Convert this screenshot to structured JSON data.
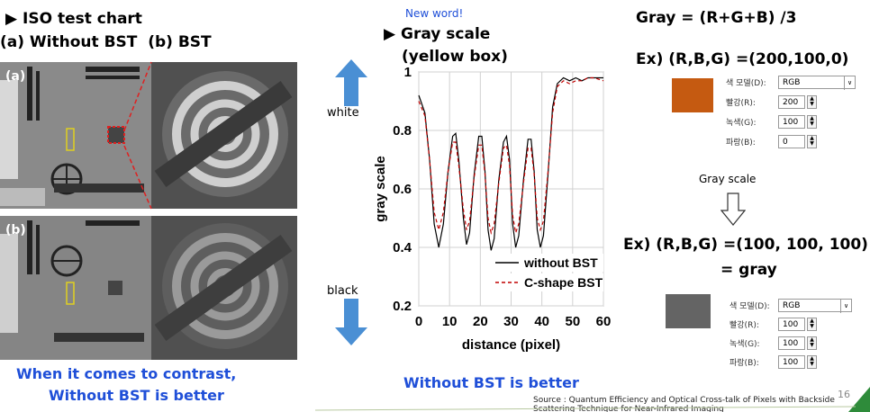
{
  "left": {
    "title": "ISO test chart",
    "subtitle": "(a) Without BST  (b) BST",
    "panel_a_tag": "(a)",
    "panel_b_tag": "(b)",
    "caption_line1": "When it comes to contrast,",
    "caption_line2": "Without BST is better"
  },
  "arrows": {
    "white_label": "white",
    "black_label": "black",
    "color": "#4a8fd4"
  },
  "graph": {
    "new_word": "New word!",
    "title_line1": "Gray scale",
    "title_line2": "(yellow box)",
    "caption": "Without BST is better"
  },
  "chart_data": {
    "type": "line",
    "xlabel": "distance (pixel)",
    "ylabel": "gray scale",
    "xlim": [
      0,
      60
    ],
    "ylim": [
      0.2,
      1.0
    ],
    "x_ticks": [
      "0",
      "10",
      "20",
      "30",
      "40",
      "50",
      "60"
    ],
    "y_ticks": [
      "0.2",
      "0.4",
      "0.6",
      "0.8",
      "1"
    ],
    "grid": true,
    "legend_position": "bottom-right",
    "series": [
      {
        "name": "without BST",
        "color": "#000000",
        "style": "solid",
        "points": [
          [
            0,
            0.92
          ],
          [
            2,
            0.86
          ],
          [
            3.5,
            0.7
          ],
          [
            5,
            0.48
          ],
          [
            6.5,
            0.4
          ],
          [
            8,
            0.48
          ],
          [
            9.5,
            0.66
          ],
          [
            11,
            0.78
          ],
          [
            12,
            0.79
          ],
          [
            13,
            0.7
          ],
          [
            14.5,
            0.5
          ],
          [
            15.5,
            0.41
          ],
          [
            16.5,
            0.45
          ],
          [
            18,
            0.65
          ],
          [
            19.5,
            0.78
          ],
          [
            20.5,
            0.78
          ],
          [
            21.5,
            0.66
          ],
          [
            22.5,
            0.46
          ],
          [
            23.5,
            0.39
          ],
          [
            24.5,
            0.43
          ],
          [
            26,
            0.63
          ],
          [
            27.5,
            0.76
          ],
          [
            28.5,
            0.78
          ],
          [
            29.5,
            0.7
          ],
          [
            30.5,
            0.48
          ],
          [
            31.5,
            0.4
          ],
          [
            32.5,
            0.44
          ],
          [
            34,
            0.63
          ],
          [
            35.5,
            0.77
          ],
          [
            36.5,
            0.77
          ],
          [
            37.5,
            0.66
          ],
          [
            38.5,
            0.46
          ],
          [
            39.5,
            0.4
          ],
          [
            40.5,
            0.44
          ],
          [
            42,
            0.65
          ],
          [
            43.5,
            0.88
          ],
          [
            45,
            0.96
          ],
          [
            47,
            0.98
          ],
          [
            49,
            0.97
          ],
          [
            51,
            0.98
          ],
          [
            53,
            0.97
          ],
          [
            55,
            0.98
          ],
          [
            57,
            0.98
          ],
          [
            60,
            0.98
          ]
        ]
      },
      {
        "name": "C-shape BST",
        "color": "#c00000",
        "style": "dashed",
        "points": [
          [
            0,
            0.9
          ],
          [
            2,
            0.85
          ],
          [
            3.5,
            0.7
          ],
          [
            5,
            0.52
          ],
          [
            6.5,
            0.46
          ],
          [
            8,
            0.52
          ],
          [
            9.5,
            0.66
          ],
          [
            11,
            0.76
          ],
          [
            12,
            0.76
          ],
          [
            13,
            0.68
          ],
          [
            14.5,
            0.53
          ],
          [
            15.5,
            0.46
          ],
          [
            16.5,
            0.49
          ],
          [
            18,
            0.64
          ],
          [
            19.5,
            0.75
          ],
          [
            20.5,
            0.75
          ],
          [
            21.5,
            0.65
          ],
          [
            22.5,
            0.5
          ],
          [
            23.5,
            0.45
          ],
          [
            24.5,
            0.48
          ],
          [
            26,
            0.62
          ],
          [
            27.5,
            0.74
          ],
          [
            28.5,
            0.75
          ],
          [
            29.5,
            0.68
          ],
          [
            30.5,
            0.51
          ],
          [
            31.5,
            0.45
          ],
          [
            32.5,
            0.48
          ],
          [
            34,
            0.62
          ],
          [
            35.5,
            0.74
          ],
          [
            36.5,
            0.74
          ],
          [
            37.5,
            0.65
          ],
          [
            38.5,
            0.5
          ],
          [
            39.5,
            0.46
          ],
          [
            40.5,
            0.49
          ],
          [
            42,
            0.66
          ],
          [
            43.5,
            0.86
          ],
          [
            45,
            0.95
          ],
          [
            47,
            0.97
          ],
          [
            49,
            0.96
          ],
          [
            51,
            0.97
          ],
          [
            53,
            0.97
          ],
          [
            55,
            0.98
          ],
          [
            57,
            0.98
          ],
          [
            60,
            0.97
          ]
        ]
      }
    ]
  },
  "right": {
    "formula": "Gray = (R+G+B) /3",
    "ex1": "Ex) (R,B,G) =(200,100,0)",
    "swatch1_color": "#c55a11",
    "dialog1": {
      "model_label": "색 모델(D):",
      "model_value": "RGB",
      "red_label": "빨강(R):",
      "red_value": "200",
      "green_label": "녹색(G):",
      "green_value": "100",
      "blue_label": "파랑(B):",
      "blue_value": "0"
    },
    "gray_scale_label": "Gray scale",
    "ex2": "Ex) (R,B,G) =(100, 100, 100)",
    "ex2_result": "= gray",
    "swatch2_color": "#646464",
    "dialog2": {
      "model_label": "색 모델(D):",
      "model_value": "RGB",
      "red_label": "빨강(R):",
      "red_value": "100",
      "green_label": "녹색(G):",
      "green_value": "100",
      "blue_label": "파랑(B):",
      "blue_value": "100"
    }
  },
  "footer": {
    "source_line1": "Source : Quantum Efficiency and Optical Cross-talk of Pixels with Backside",
    "source_line2": "Scattering Technique for Near-Infrared Imaging",
    "page_number": "16"
  }
}
